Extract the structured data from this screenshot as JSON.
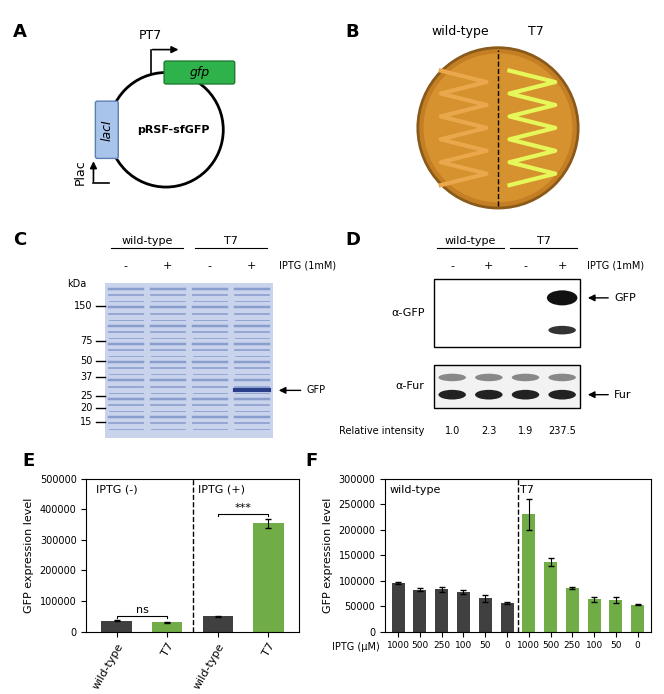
{
  "chart_data": [
    {
      "type": "bar",
      "title": "E",
      "ylabel": "GFP expression level",
      "categories": [
        "wild-type",
        "T7",
        "wild-type",
        "T7"
      ],
      "values": [
        35000,
        30000,
        50000,
        355000
      ],
      "errors": [
        2000,
        1500,
        1500,
        15000
      ],
      "colors": [
        "#404040",
        "#70ad47",
        "#404040",
        "#70ad47"
      ],
      "groups": [
        {
          "label": "IPTG (-)",
          "size": 2
        },
        {
          "label": "IPTG (+)",
          "size": 2
        }
      ],
      "annotations": [
        {
          "text": "ns",
          "between": [
            0,
            1
          ]
        },
        {
          "text": "***",
          "between": [
            2,
            3
          ]
        }
      ],
      "ylim": [
        0,
        500000
      ],
      "yticks": [
        0,
        100000,
        200000,
        300000,
        400000,
        500000
      ]
    },
    {
      "type": "bar",
      "title": "F",
      "ylabel": "GFP expression level",
      "xlabel": "IPTG (μM)",
      "categories": [
        "1000",
        "500",
        "250",
        "100",
        "50",
        "0",
        "1000",
        "500",
        "250",
        "100",
        "50",
        "0"
      ],
      "values": [
        95000,
        82000,
        83000,
        78000,
        65000,
        57000,
        230000,
        137000,
        85000,
        63000,
        62000,
        53000
      ],
      "errors": [
        2000,
        3000,
        5000,
        4000,
        7000,
        2000,
        30000,
        8000,
        2000,
        5000,
        5000,
        1000
      ],
      "colors": [
        "#404040",
        "#404040",
        "#404040",
        "#404040",
        "#404040",
        "#404040",
        "#70ad47",
        "#70ad47",
        "#70ad47",
        "#70ad47",
        "#70ad47",
        "#70ad47"
      ],
      "groups": [
        {
          "label": "wild-type",
          "size": 6
        },
        {
          "label": "T7",
          "size": 6
        }
      ],
      "ylim": [
        0,
        300000
      ],
      "yticks": [
        0,
        50000,
        100000,
        150000,
        200000,
        250000,
        300000
      ]
    }
  ],
  "panels": {
    "A": {
      "title": "A",
      "plasmid": "pRSF-sfGFP",
      "gfp": {
        "gene": "gfp",
        "promoter": "PT7"
      },
      "lacI": {
        "gene": "lacI",
        "promoter": "Plac"
      }
    },
    "B": {
      "title": "B",
      "strains": [
        "wild-type",
        "T7"
      ]
    },
    "C": {
      "title": "C",
      "strains": [
        "wild-type",
        "T7"
      ],
      "iptg": [
        "-",
        "+",
        "-",
        "+"
      ],
      "iptg_label": "IPTG (1mM)",
      "marker_unit": "kDa",
      "markers": [
        150,
        75,
        50,
        37,
        25,
        20,
        15
      ],
      "band_label": "GFP"
    },
    "D": {
      "title": "D",
      "strains": [
        "wild-type",
        "T7"
      ],
      "iptg": [
        "-",
        "+",
        "-",
        "+"
      ],
      "iptg_label": "IPTG (1mM)",
      "blots": [
        {
          "antibody": "α-GFP",
          "target": "GFP"
        },
        {
          "antibody": "α-Fur",
          "target": "Fur"
        }
      ],
      "intensity_label": "Relative intensity",
      "intensities": [
        1.0,
        2.3,
        1.9,
        237.5
      ]
    }
  }
}
